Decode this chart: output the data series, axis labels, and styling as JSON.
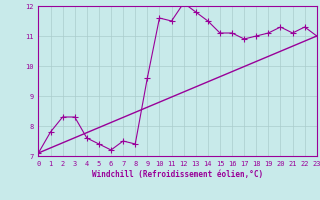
{
  "title": "",
  "xlabel": "Windchill (Refroidissement éolien,°C)",
  "ylabel": "",
  "bg_color": "#c8eaea",
  "line_color": "#990099",
  "grid_color": "#aacccc",
  "x_min": 0,
  "x_max": 23,
  "y_min": 7,
  "y_max": 12,
  "curve1_x": [
    0,
    1,
    2,
    3,
    4,
    5,
    6,
    7,
    8,
    9,
    10,
    11,
    12,
    13,
    14,
    15,
    16,
    17,
    18,
    19,
    20,
    21,
    22,
    23
  ],
  "curve1_y": [
    7.1,
    7.8,
    8.3,
    8.3,
    7.6,
    7.4,
    7.2,
    7.5,
    7.4,
    9.6,
    11.6,
    11.5,
    12.1,
    11.8,
    11.5,
    11.1,
    11.1,
    10.9,
    11.0,
    11.1,
    11.3,
    11.1,
    11.3,
    11.0
  ],
  "curve2_x": [
    0,
    23
  ],
  "curve2_y": [
    7.1,
    11.0
  ],
  "tick_label_color": "#990099",
  "axis_label_color": "#990099",
  "font_name": "monospace",
  "yticks": [
    7,
    8,
    9,
    10,
    11,
    12
  ],
  "figwidth": 3.2,
  "figheight": 2.0,
  "dpi": 100
}
